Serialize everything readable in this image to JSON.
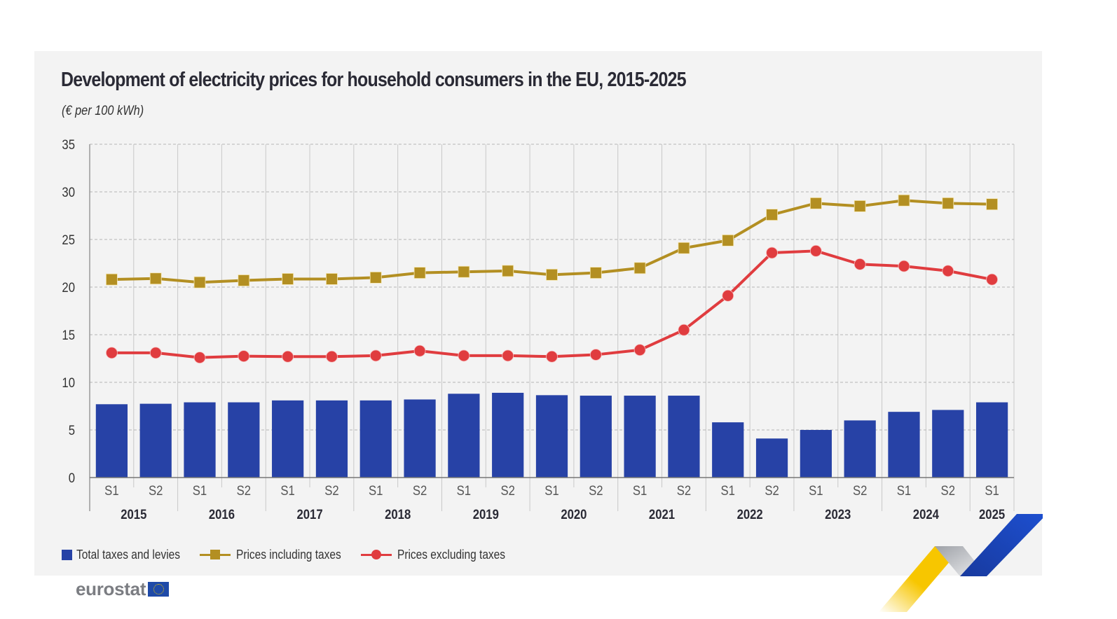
{
  "title": "Development of electricity prices for household consumers in the EU, 2015-2025",
  "subtitle": "(€ per 100 kWh)",
  "brand": {
    "logo_text": "eurostat",
    "flag_icon": "eu-flag-icon"
  },
  "colors": {
    "bar": "#2742a6",
    "incl_taxes": "#b38f22",
    "excl_taxes": "#e03c3f",
    "panel_bg": "#f3f3f3",
    "ribbon_yellow": "#f7c600",
    "ribbon_blue": "#1d47c4",
    "ribbon_grey": "#b9bcc2"
  },
  "legend": [
    {
      "label": "Total taxes and levies",
      "type": "bar"
    },
    {
      "label": "Prices including taxes",
      "type": "line-square"
    },
    {
      "label": "Prices excluding taxes",
      "type": "line-circle"
    }
  ],
  "chart_data": {
    "type": "bar",
    "title": "Development of electricity prices for household consumers in the EU, 2015-2025",
    "subtitle": "(€ per 100 kWh)",
    "xlabel": "",
    "ylabel": "",
    "ylim": [
      0,
      35
    ],
    "yticks": [
      0,
      5,
      10,
      15,
      20,
      25,
      30,
      35
    ],
    "grid": true,
    "legend_position": "bottom-left",
    "categories": [
      "S1",
      "S2",
      "S1",
      "S2",
      "S1",
      "S2",
      "S1",
      "S2",
      "S1",
      "S2",
      "S1",
      "S2",
      "S1",
      "S2",
      "S1",
      "S2",
      "S1",
      "S2",
      "S1",
      "S2",
      "S1"
    ],
    "year_groups": [
      {
        "label": "2015",
        "span": 2
      },
      {
        "label": "2016",
        "span": 2
      },
      {
        "label": "2017",
        "span": 2
      },
      {
        "label": "2018",
        "span": 2
      },
      {
        "label": "2019",
        "span": 2
      },
      {
        "label": "2020",
        "span": 2
      },
      {
        "label": "2021",
        "span": 2
      },
      {
        "label": "2022",
        "span": 2
      },
      {
        "label": "2023",
        "span": 2
      },
      {
        "label": "2024",
        "span": 2
      },
      {
        "label": "2025",
        "span": 1
      }
    ],
    "series": [
      {
        "name": "Total taxes and levies",
        "type": "bar",
        "values": [
          7.7,
          7.75,
          7.9,
          7.9,
          8.1,
          8.1,
          8.1,
          8.2,
          8.8,
          8.9,
          8.65,
          8.6,
          8.6,
          8.6,
          5.8,
          4.1,
          5.0,
          6.0,
          6.9,
          7.1,
          7.9
        ]
      },
      {
        "name": "Prices including taxes",
        "type": "line",
        "marker": "square",
        "values": [
          20.8,
          20.9,
          20.5,
          20.7,
          20.85,
          20.85,
          21.0,
          21.5,
          21.6,
          21.7,
          21.3,
          21.5,
          22.0,
          24.1,
          24.9,
          27.6,
          28.8,
          28.5,
          29.1,
          28.8,
          28.7
        ]
      },
      {
        "name": "Prices excluding taxes",
        "type": "line",
        "marker": "circle",
        "values": [
          13.1,
          13.1,
          12.6,
          12.75,
          12.7,
          12.7,
          12.8,
          13.3,
          12.8,
          12.8,
          12.7,
          12.9,
          13.4,
          15.5,
          19.1,
          23.6,
          23.8,
          22.4,
          22.2,
          21.7,
          20.8
        ]
      }
    ]
  }
}
